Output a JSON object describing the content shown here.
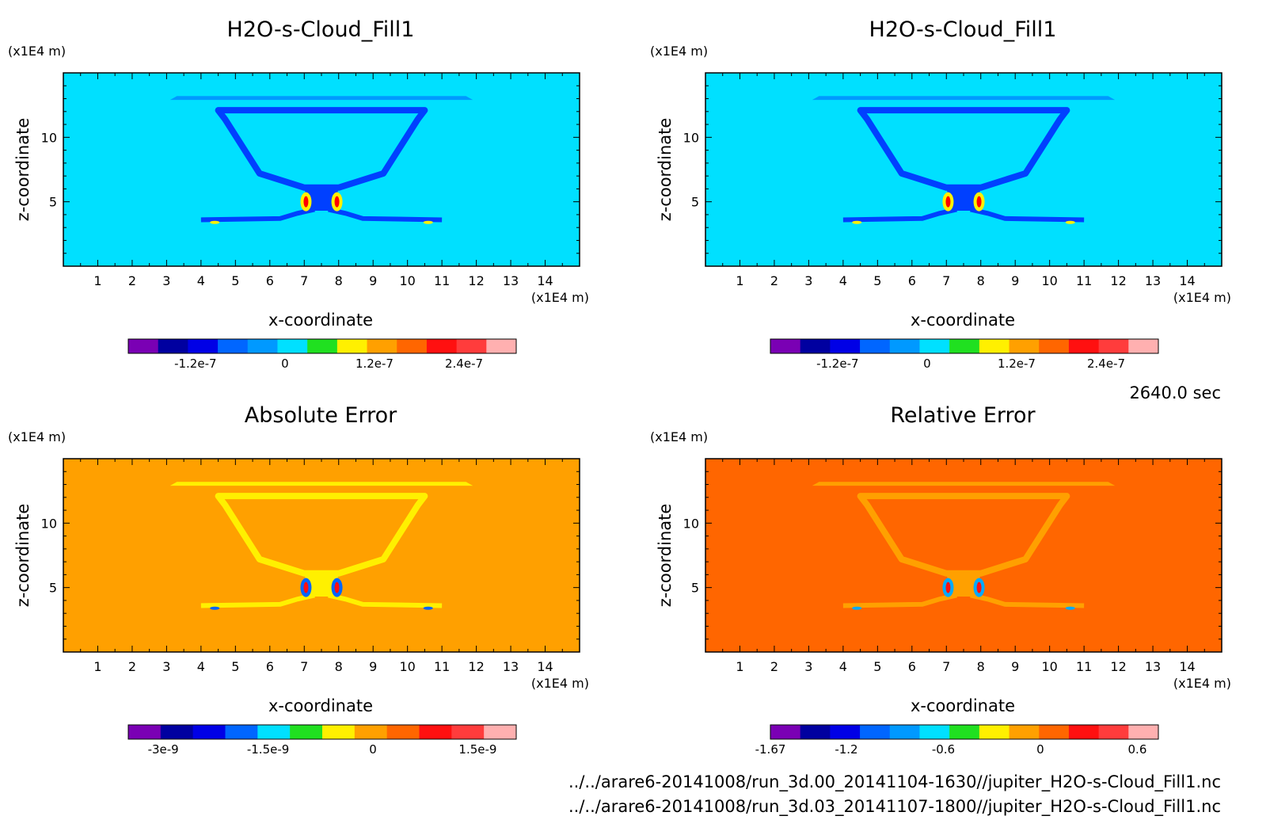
{
  "figure": {
    "time_label": "2640.0 sec",
    "file_paths": [
      "../../arare6-20141008/run_3d.00_20141104-1630//jupiter_H2O-s-Cloud_Fill1.nc",
      "../../arare6-20141008/run_3d.03_20141107-1800//jupiter_H2O-s-Cloud_Fill1.nc"
    ]
  },
  "chart_data": [
    {
      "type": "heatmap",
      "title": "H2O-s-Cloud_Fill1",
      "xlabel": "x-coordinate",
      "ylabel": "z-coordinate",
      "x_unit": "(x1E4 m)",
      "y_unit": "(x1E4 m)",
      "xlim": [
        0,
        15
      ],
      "ylim": [
        0,
        15
      ],
      "x_ticks": [
        1,
        2,
        3,
        4,
        5,
        6,
        7,
        8,
        9,
        10,
        11,
        12,
        13,
        14
      ],
      "y_ticks": [
        5,
        10
      ],
      "background_color": "#00e0ff",
      "feature_colors": [
        "#0099ff",
        "#0040ff",
        "#fff000",
        "#ff0000"
      ],
      "colorbar": {
        "colors": [
          "#7a00b4",
          "#0000a0",
          "#0000e6",
          "#0066ff",
          "#0099ff",
          "#00e0ff",
          "#20e020",
          "#fff000",
          "#ffa000",
          "#ff6600",
          "#ff1010",
          "#ff3c3c",
          "#ffb0b0"
        ],
        "tick_labels": [
          "-1.2e-7",
          "0",
          "1.2e-7",
          "2.4e-7"
        ],
        "tick_values": [
          -1.2e-07,
          0,
          1.2e-07,
          2.4e-07
        ],
        "range": [
          -2.1e-07,
          3.1e-07
        ]
      }
    },
    {
      "type": "heatmap",
      "title": "H2O-s-Cloud_Fill1",
      "xlabel": "x-coordinate",
      "ylabel": "z-coordinate",
      "x_unit": "(x1E4 m)",
      "y_unit": "(x1E4 m)",
      "xlim": [
        0,
        15
      ],
      "ylim": [
        0,
        15
      ],
      "x_ticks": [
        1,
        2,
        3,
        4,
        5,
        6,
        7,
        8,
        9,
        10,
        11,
        12,
        13,
        14
      ],
      "y_ticks": [
        5,
        10
      ],
      "background_color": "#00e0ff",
      "feature_colors": [
        "#0099ff",
        "#0040ff",
        "#fff000",
        "#ff0000"
      ],
      "colorbar": {
        "colors": [
          "#7a00b4",
          "#0000a0",
          "#0000e6",
          "#0066ff",
          "#0099ff",
          "#00e0ff",
          "#20e020",
          "#fff000",
          "#ffa000",
          "#ff6600",
          "#ff1010",
          "#ff3c3c",
          "#ffb0b0"
        ],
        "tick_labels": [
          "-1.2e-7",
          "0",
          "1.2e-7",
          "2.4e-7"
        ],
        "tick_values": [
          -1.2e-07,
          0,
          1.2e-07,
          2.4e-07
        ],
        "range": [
          -2.1e-07,
          3.1e-07
        ]
      }
    },
    {
      "type": "heatmap",
      "title": "Absolute Error",
      "xlabel": "x-coordinate",
      "ylabel": "z-coordinate",
      "x_unit": "(x1E4 m)",
      "y_unit": "(x1E4 m)",
      "xlim": [
        0,
        15
      ],
      "ylim": [
        0,
        15
      ],
      "x_ticks": [
        1,
        2,
        3,
        4,
        5,
        6,
        7,
        8,
        9,
        10,
        11,
        12,
        13,
        14
      ],
      "y_ticks": [
        5,
        10
      ],
      "background_color": "#ffa000",
      "feature_colors": [
        "#fff000",
        "#fff000",
        "#0066ff",
        "#ff1010"
      ],
      "colorbar": {
        "colors": [
          "#7a00b4",
          "#0000a0",
          "#0000e6",
          "#0066ff",
          "#00e0ff",
          "#20e020",
          "#fff000",
          "#ffa000",
          "#ff6600",
          "#ff1010",
          "#ff3c3c",
          "#ffb0b0"
        ],
        "tick_labels": [
          "-3e-9",
          "-1.5e-9",
          "0",
          "1.5e-9"
        ],
        "tick_values": [
          -3e-09,
          -1.5e-09,
          0,
          1.5e-09
        ],
        "range": [
          -3.5e-09,
          2.05e-09
        ]
      }
    },
    {
      "type": "heatmap",
      "title": "Relative Error",
      "xlabel": "x-coordinate",
      "ylabel": "z-coordinate",
      "x_unit": "(x1E4 m)",
      "y_unit": "(x1E4 m)",
      "xlim": [
        0,
        15
      ],
      "ylim": [
        0,
        15
      ],
      "x_ticks": [
        1,
        2,
        3,
        4,
        5,
        6,
        7,
        8,
        9,
        10,
        11,
        12,
        13,
        14
      ],
      "y_ticks": [
        5,
        10
      ],
      "background_color": "#ff6600",
      "feature_colors": [
        "#ffa000",
        "#ffa000",
        "#00aaff",
        "#ff1010"
      ],
      "colorbar": {
        "colors": [
          "#7a00b4",
          "#0000a0",
          "#0000e6",
          "#0066ff",
          "#0099ff",
          "#00e0ff",
          "#20e020",
          "#fff000",
          "#ffa000",
          "#ff6600",
          "#ff1010",
          "#ff3c3c",
          "#ffb0b0"
        ],
        "tick_labels": [
          "-1.67",
          "-1.2",
          "-0.6",
          "0",
          "0.6"
        ],
        "tick_values": [
          -1.67,
          -1.2,
          -0.6,
          0,
          0.6
        ],
        "range": [
          -1.67,
          0.73
        ]
      }
    }
  ]
}
